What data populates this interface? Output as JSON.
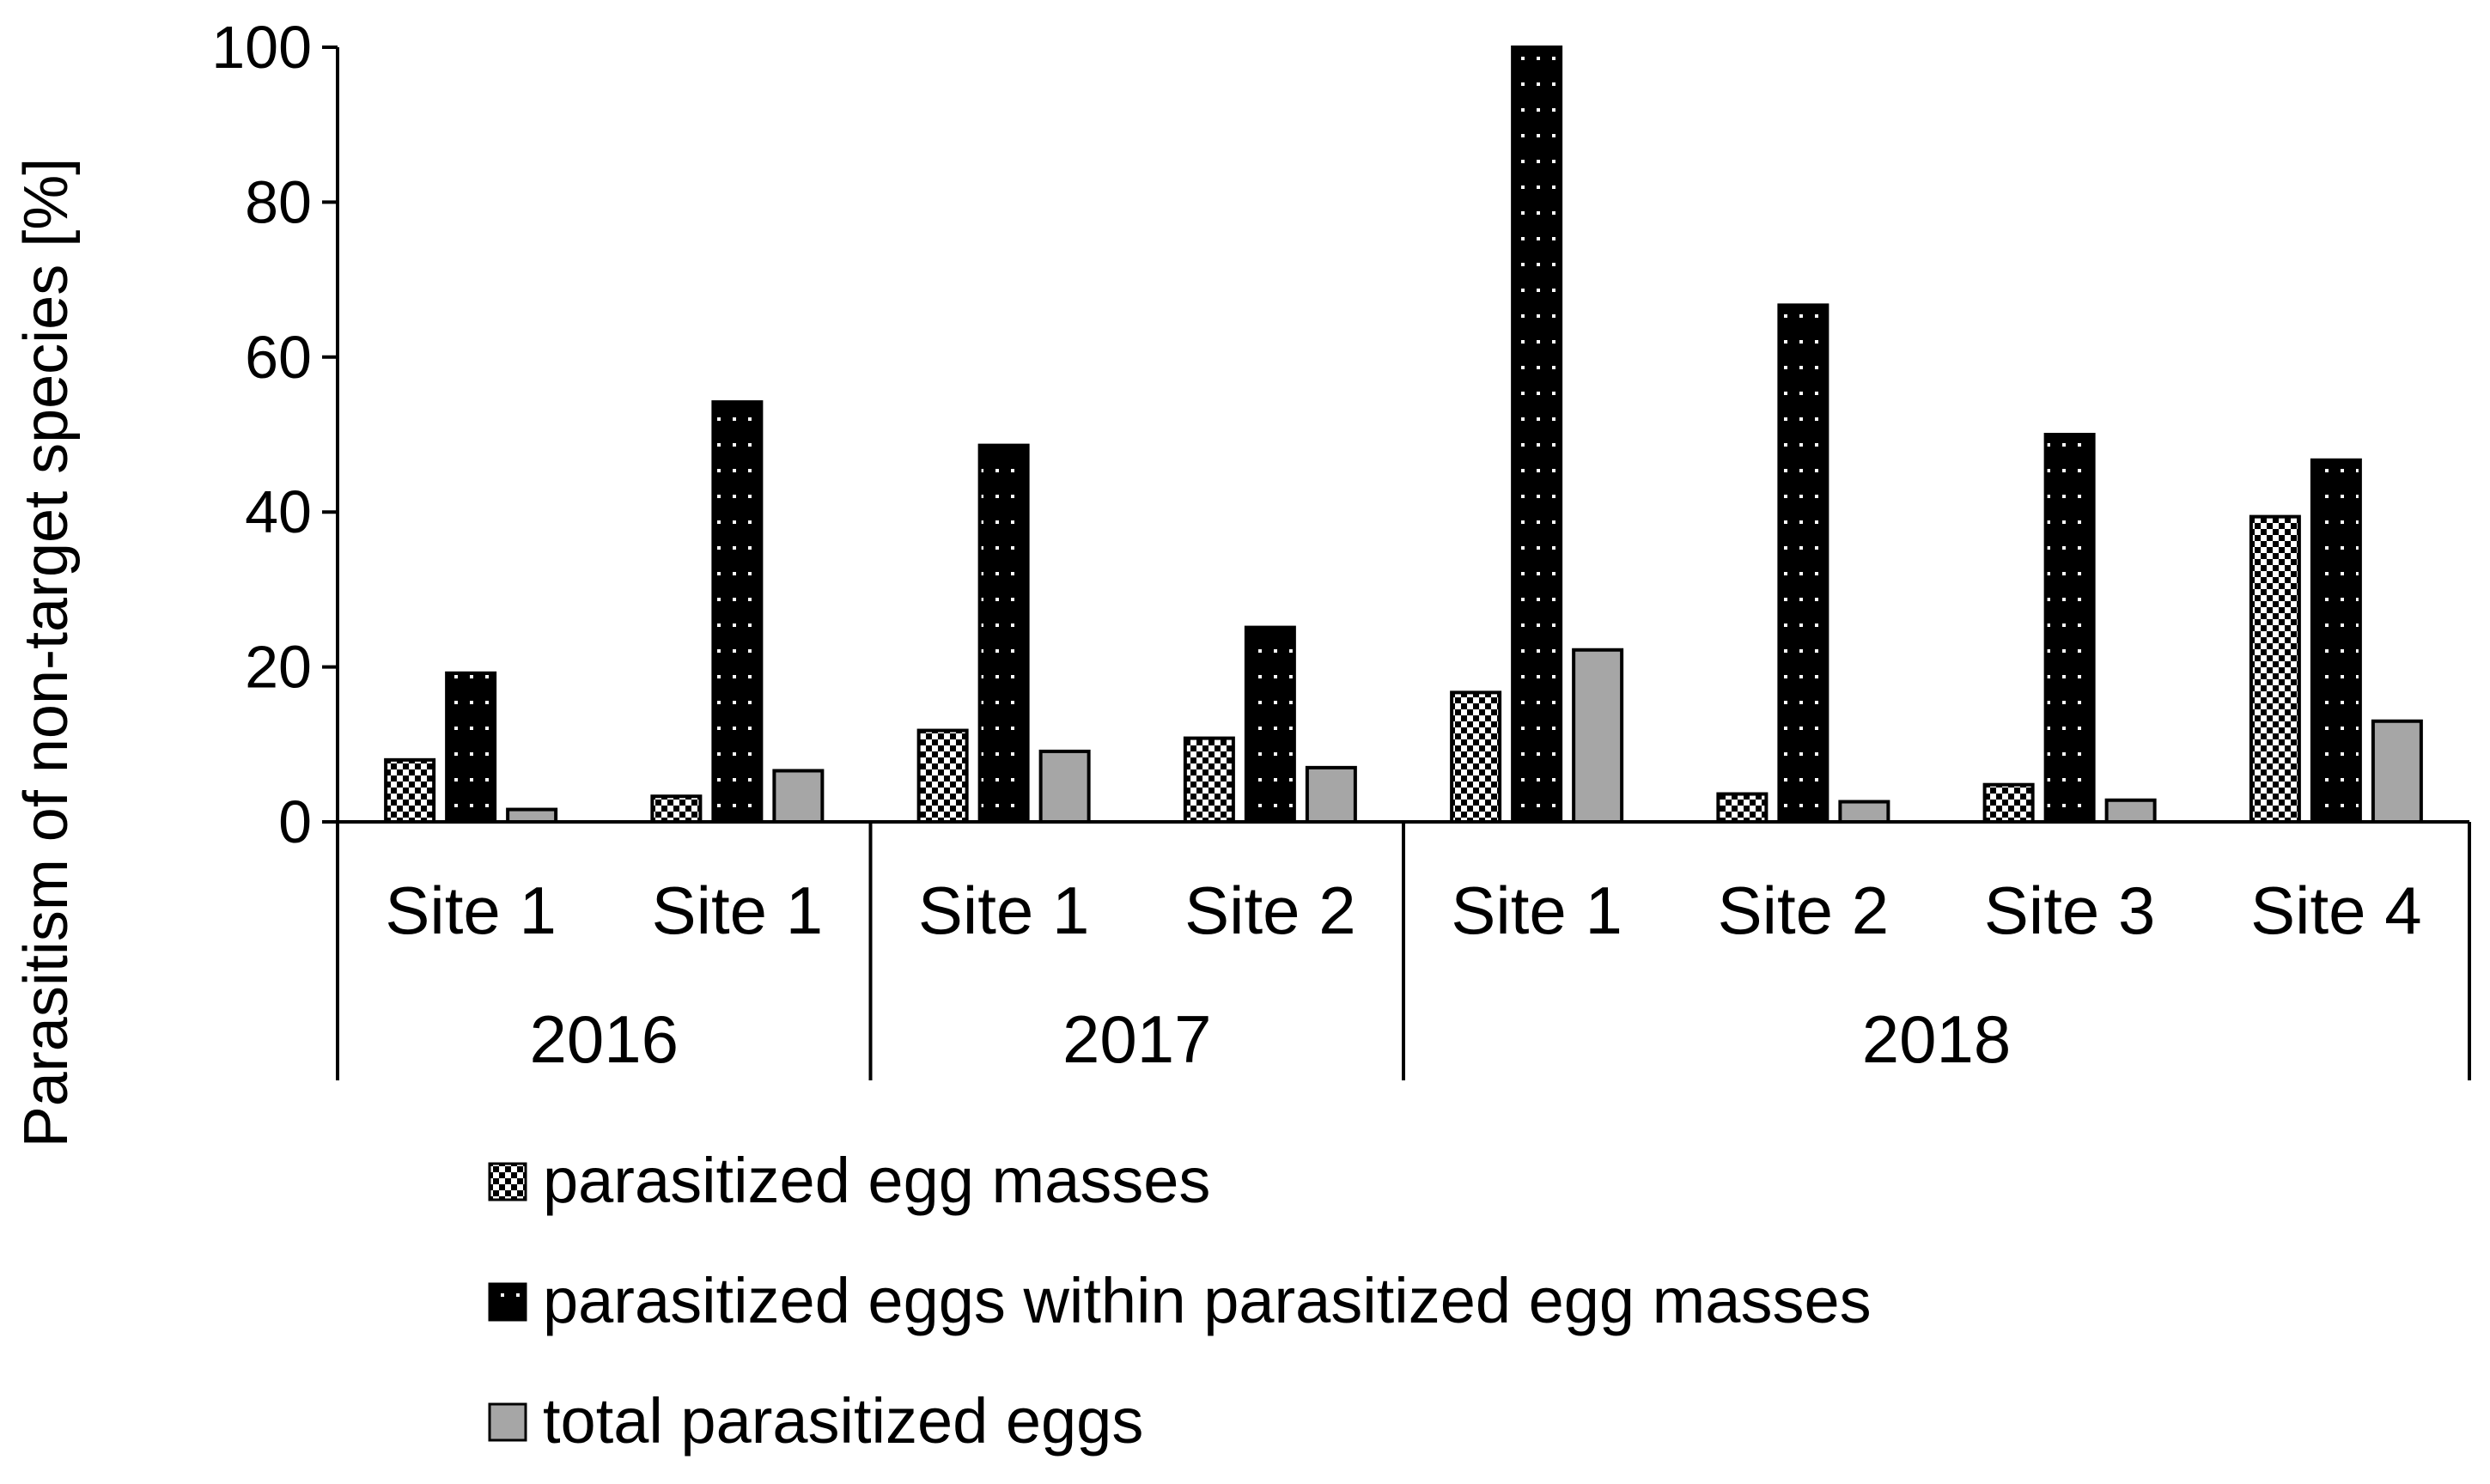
{
  "chart_data": {
    "type": "bar",
    "title": "",
    "xlabel": "",
    "ylabel": "Parasitism of non-target species [%]",
    "ylim": [
      0,
      100
    ],
    "yticks": [
      "0",
      "20",
      "40",
      "60",
      "80",
      "100"
    ],
    "categories": [
      "Site 1",
      "Site 1",
      "Site 1",
      "Site 2",
      "Site 1",
      "Site 2",
      "Site 3",
      "Site 4"
    ],
    "groups": [
      {
        "label": "2016",
        "start": 0,
        "count": 2
      },
      {
        "label": "2017",
        "start": 2,
        "count": 2
      },
      {
        "label": "2018",
        "start": 4,
        "count": 4
      }
    ],
    "series": [
      {
        "name": "parasitized egg masses",
        "pattern": "checker",
        "values": [
          8,
          3.3,
          11.8,
          10.8,
          16.7,
          3.6,
          4.8,
          39.4
        ]
      },
      {
        "name": "parasitized eggs within parasitized egg masses",
        "pattern": "dots",
        "values": [
          19.2,
          54.2,
          48.6,
          25.1,
          100,
          66.7,
          50.0,
          46.7
        ]
      },
      {
        "name": "total parasitized eggs",
        "pattern": "gray",
        "values": [
          1.6,
          6.6,
          9.1,
          7.0,
          22.2,
          2.6,
          2.8,
          13.0
        ]
      }
    ],
    "legend_position": "bottom",
    "colors": {
      "dark": "#000000",
      "gray": "#a6a6a6",
      "light": "#ffffff"
    }
  }
}
